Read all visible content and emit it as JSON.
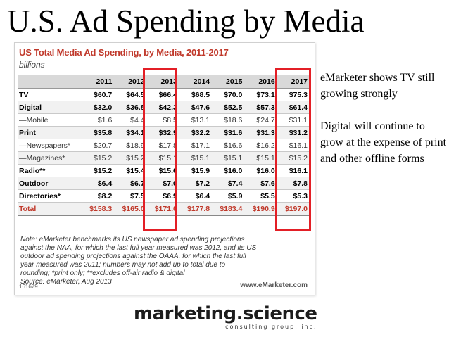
{
  "slide": {
    "title": "U.S. Ad Spending by Media"
  },
  "figure": {
    "title": "US Total Media Ad Spending, by Media, 2011-2017",
    "subtitle": "billions",
    "columns": [
      "",
      "2011",
      "2012",
      "2013",
      "2014",
      "2015",
      "2016",
      "2017"
    ],
    "rows": [
      {
        "label": "TV",
        "kind": "main",
        "values": [
          "$60.7",
          "$64.5",
          "$66.4",
          "$68.5",
          "$70.0",
          "$73.1",
          "$75.3"
        ]
      },
      {
        "label": "Digital",
        "kind": "main",
        "values": [
          "$32.0",
          "$36.8",
          "$42.3",
          "$47.6",
          "$52.5",
          "$57.3",
          "$61.4"
        ]
      },
      {
        "label": "—Mobile",
        "kind": "sub",
        "values": [
          "$1.6",
          "$4.4",
          "$8.5",
          "$13.1",
          "$18.6",
          "$24.7",
          "$31.1"
        ]
      },
      {
        "label": "Print",
        "kind": "main",
        "values": [
          "$35.8",
          "$34.1",
          "$32.9",
          "$32.2",
          "$31.6",
          "$31.3",
          "$31.2"
        ]
      },
      {
        "label": "—Newspapers*",
        "kind": "sub",
        "values": [
          "$20.7",
          "$18.9",
          "$17.8",
          "$17.1",
          "$16.6",
          "$16.2",
          "$16.1"
        ]
      },
      {
        "label": "—Magazines*",
        "kind": "sub",
        "values": [
          "$15.2",
          "$15.2",
          "$15.1",
          "$15.1",
          "$15.1",
          "$15.1",
          "$15.2"
        ]
      },
      {
        "label": "Radio**",
        "kind": "main",
        "values": [
          "$15.2",
          "$15.4",
          "$15.6",
          "$15.9",
          "$16.0",
          "$16.0",
          "$16.1"
        ]
      },
      {
        "label": "Outdoor",
        "kind": "main",
        "values": [
          "$6.4",
          "$6.7",
          "$7.0",
          "$7.2",
          "$7.4",
          "$7.6",
          "$7.8"
        ]
      },
      {
        "label": "Directories*",
        "kind": "main",
        "values": [
          "$8.2",
          "$7.5",
          "$6.9",
          "$6.4",
          "$5.9",
          "$5.5",
          "$5.3"
        ]
      },
      {
        "label": "Total",
        "kind": "total",
        "values": [
          "$158.3",
          "$165.0",
          "$171.0",
          "$177.8",
          "$183.4",
          "$190.9",
          "$197.0"
        ]
      }
    ],
    "note_lines": [
      "Note: eMarketer benchmarks its US newspaper ad spending projections",
      "against the NAA, for which the last full year measured was 2012, and its US",
      "outdoor ad spending projections against the OAAA, for which the last full",
      "year measured was 2011; numbers may not add up to total due to",
      "rounding; *print only; **excludes off-air radio & digital",
      "Source: eMarketer, Aug 2013"
    ],
    "chart_id": "161679",
    "source_brand": "www.eMarketer.com",
    "highlight_color": "#e31f26",
    "title_color": "#c0392b"
  },
  "commentary": {
    "paragraph1": "eMarketer shows TV still growing strongly",
    "paragraph2": "Digital will continue to grow at the expense of print and other offline forms"
  },
  "brand": {
    "name": "marketing.science",
    "tagline": "consulting group, inc."
  }
}
